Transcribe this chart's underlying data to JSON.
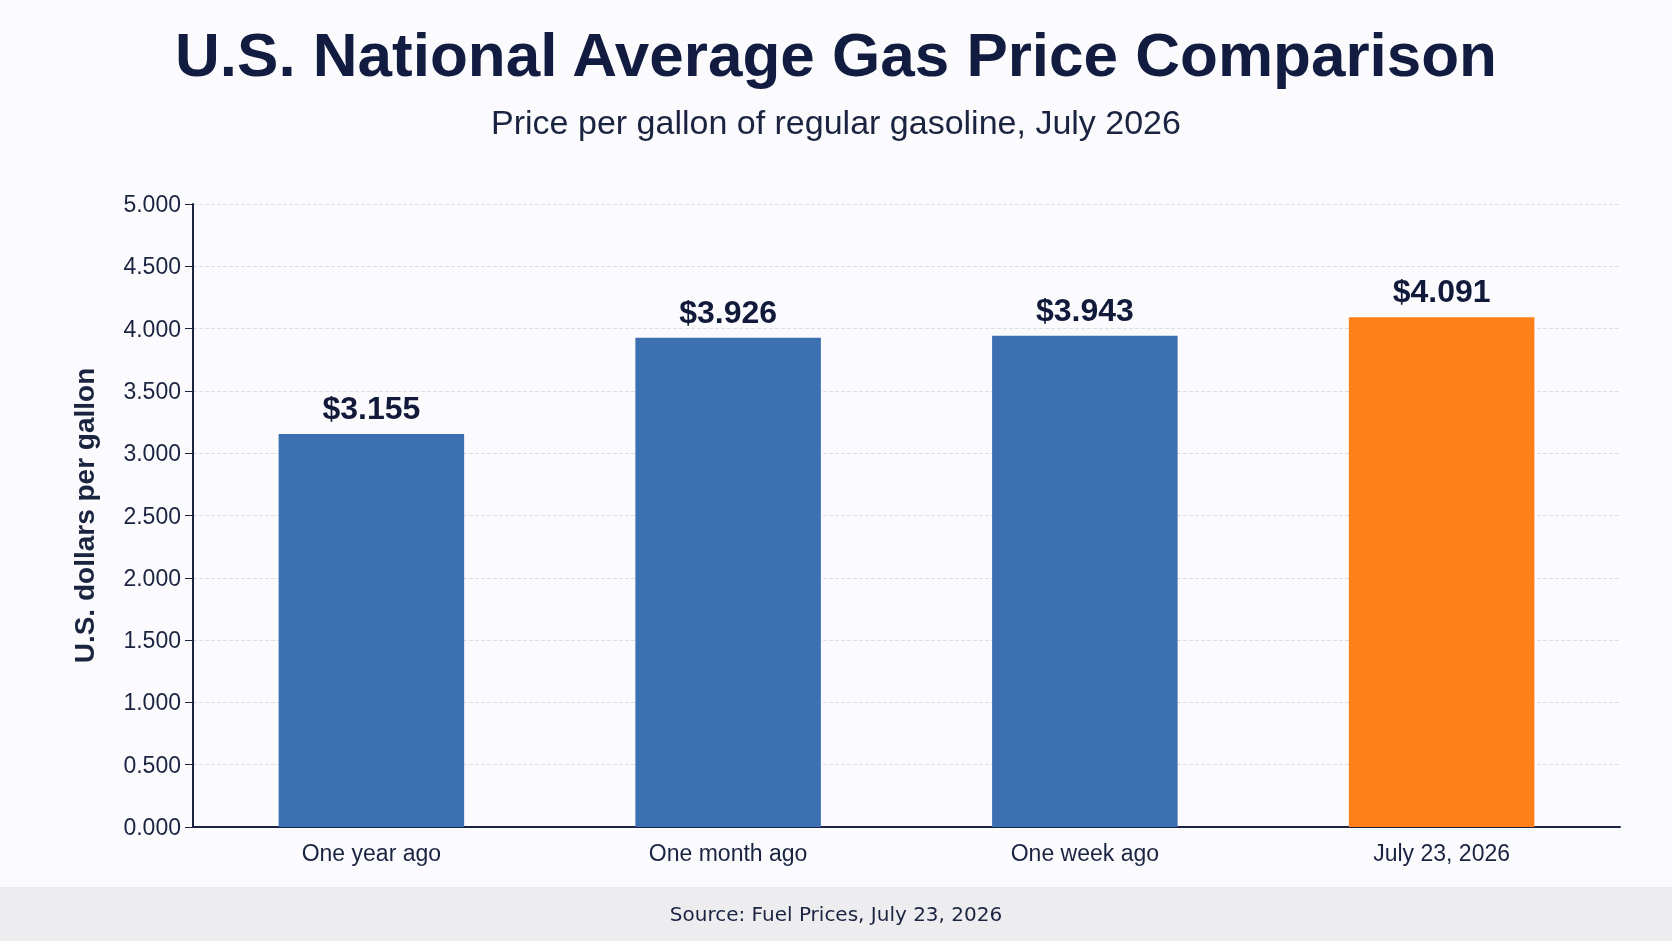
{
  "chart_data": {
    "type": "bar",
    "title": "U.S. National Average Gas Price Comparison",
    "subtitle": "Price per gallon of regular gasoline, July 2026",
    "ylabel": "U.S. dollars per gallon",
    "categories": [
      "One year ago",
      "One month ago",
      "One week ago",
      "July 23, 2026"
    ],
    "values": [
      3.155,
      3.926,
      3.943,
      4.091
    ],
    "colors": [
      "#3d70b0",
      "#3d70b0",
      "#3d70b0",
      "#ff7f19"
    ],
    "value_labels": [
      "$3.155",
      "$3.926",
      "$3.943",
      "$4.091"
    ],
    "ylim": [
      0,
      5
    ],
    "yticks": [
      {
        "value": 0,
        "label": "0.000"
      },
      {
        "value": 0.5,
        "label": "0.500"
      },
      {
        "value": 1,
        "label": "1.000"
      },
      {
        "value": 1.5,
        "label": "1.500"
      },
      {
        "value": 2,
        "label": "2.000"
      },
      {
        "value": 2.5,
        "label": "2.500"
      },
      {
        "value": 3,
        "label": "3.000"
      },
      {
        "value": 3.5,
        "label": "3.500"
      },
      {
        "value": 4,
        "label": "4.000"
      },
      {
        "value": 4.5,
        "label": "4.500"
      },
      {
        "value": 5,
        "label": "5.000"
      }
    ],
    "grid": "y",
    "annotations": [
      "Source: Fuel Prices, July 23, 2026"
    ]
  }
}
